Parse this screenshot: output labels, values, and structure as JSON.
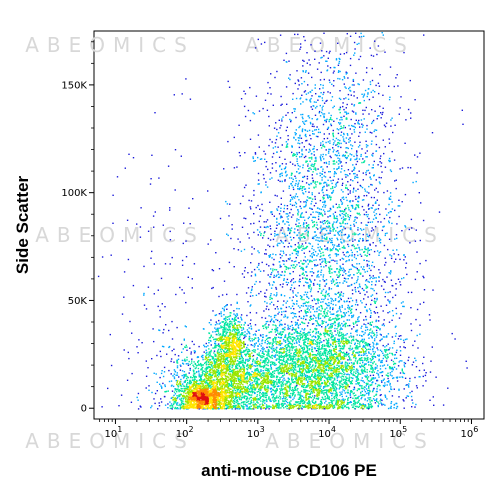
{
  "watermark_text": "ABEOMICS",
  "chart_data": {
    "type": "scatter",
    "subtype": "flow-cytometry-density",
    "title": "",
    "xlabel": "anti-mouse CD106 PE",
    "ylabel": "Side Scatter",
    "x_scale": "log",
    "x_range": [
      5,
      1500000
    ],
    "x_ticks": [
      {
        "value": 10,
        "base": "10",
        "exp": "1"
      },
      {
        "value": 100,
        "base": "10",
        "exp": "2"
      },
      {
        "value": 1000,
        "base": "10",
        "exp": "3"
      },
      {
        "value": 10000,
        "base": "10",
        "exp": "4"
      },
      {
        "value": 100000,
        "base": "10",
        "exp": "5"
      },
      {
        "value": 1000000,
        "base": "10",
        "exp": "6"
      }
    ],
    "y_scale": "linear",
    "y_range": [
      -5000,
      175000
    ],
    "y_ticks": [
      {
        "value": 0,
        "label": "0"
      },
      {
        "value": 50000,
        "label": "50K"
      },
      {
        "value": 100000,
        "label": "100K"
      },
      {
        "value": 150000,
        "label": "150K"
      }
    ],
    "colormap": [
      "#1a1adb",
      "#00a8ff",
      "#00e6a0",
      "#9be600",
      "#ffe600",
      "#ff8a00",
      "#e01010"
    ],
    "populations": [
      {
        "name": "hot-core",
        "x_center": 160,
        "y_center": 5000,
        "x_spread_decades": 0.18,
        "y_spread": 3000,
        "count": 900
      },
      {
        "name": "lower-ridge",
        "x_center": 300,
        "y_center": 12000,
        "x_spread_decades": 0.35,
        "y_spread": 8000,
        "count": 1800
      },
      {
        "name": "upper-ridge",
        "x_center": 400,
        "y_center": 30000,
        "x_spread_decades": 0.12,
        "y_spread": 7000,
        "count": 700
      },
      {
        "name": "mid-band",
        "x_center": 6000,
        "y_center": 18000,
        "x_spread_decades": 0.6,
        "y_spread": 12000,
        "count": 3500
      },
      {
        "name": "sparse-cloud",
        "x_center": 8000,
        "y_center": 70000,
        "x_spread_decades": 0.55,
        "y_spread": 35000,
        "count": 2600
      },
      {
        "name": "top-scatter",
        "x_center": 12000,
        "y_center": 130000,
        "x_spread_decades": 0.5,
        "y_spread": 25000,
        "count": 700
      },
      {
        "name": "left-scatter",
        "x_center": 60,
        "y_center": 50000,
        "x_spread_decades": 0.5,
        "y_spread": 40000,
        "count": 180
      }
    ],
    "grid": false,
    "legend": "none"
  }
}
